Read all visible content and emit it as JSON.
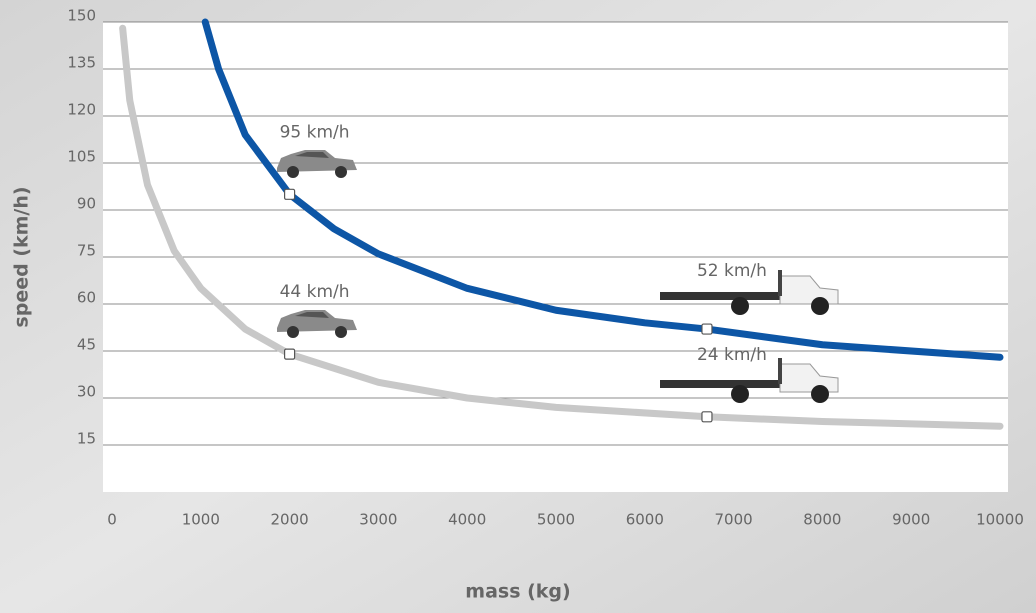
{
  "chart_data": {
    "type": "line",
    "x_label": "mass (kg)",
    "y_label": "speed (km/h)",
    "xlim": [
      0,
      10000
    ],
    "xticks": [
      0,
      1000,
      2000,
      3000,
      4000,
      5000,
      6000,
      7000,
      8000,
      9000,
      10000
    ],
    "ylim": [
      0,
      150
    ],
    "yticks": [
      15,
      30,
      45,
      60,
      75,
      90,
      105,
      120,
      135,
      150
    ],
    "grid": true,
    "series": [
      {
        "color": "#0d56a6",
        "x": [
          1050,
          1200,
          1500,
          2000,
          2500,
          3000,
          4000,
          5000,
          6000,
          6700,
          8000,
          10000
        ],
        "values": [
          150,
          135,
          114,
          95,
          84,
          76,
          65,
          58,
          54,
          52,
          47,
          43
        ]
      },
      {
        "color": "#c8c8c8",
        "x": [
          120,
          200,
          400,
          700,
          1000,
          1500,
          2000,
          3000,
          4000,
          5000,
          6700,
          8000,
          10000
        ],
        "values": [
          148,
          125,
          98,
          77,
          65,
          52,
          44,
          35,
          30,
          27,
          24,
          22.5,
          21
        ]
      }
    ],
    "points": [
      {
        "x": 2000,
        "value": 95,
        "label": "95 km/h"
      },
      {
        "x": 6700,
        "value": 52,
        "label": "52 km/h"
      },
      {
        "x": 2000,
        "value": 44,
        "label": "44 km/h"
      },
      {
        "x": 6700,
        "value": 24,
        "label": "24 km/h"
      }
    ]
  }
}
